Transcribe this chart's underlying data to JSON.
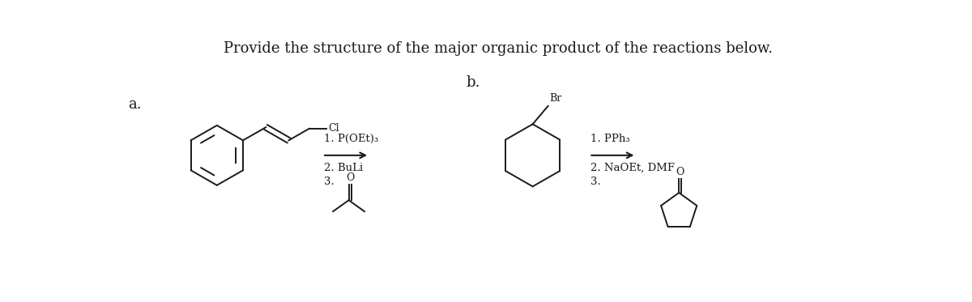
{
  "title": "Provide the structure of the major organic product of the reactions below.",
  "title_color": "#1a1a1a",
  "title_fontsize": 13,
  "bg_color": "#ffffff",
  "label_a": "a.",
  "label_b": "b.",
  "label_fontsize": 13,
  "reagents_a_above": "1. P(OEt)₃",
  "reagents_a_below1": "2. BuLi",
  "reagents_a_below2": "3.",
  "reagents_b_above": "1. PPh₃",
  "reagents_b_below1": "2. NaOEt, DMF",
  "reagents_b_below2": "3.",
  "text_color": "#1a1a1a",
  "reagent_fontsize": 9.5,
  "struct_lw": 1.4
}
